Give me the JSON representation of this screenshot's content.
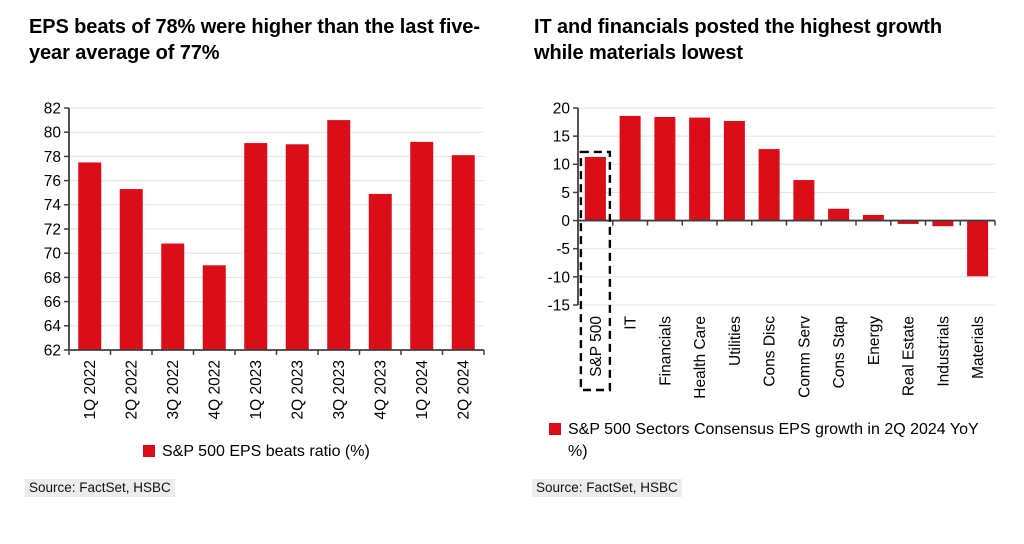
{
  "chart_data": [
    {
      "type": "bar",
      "title": "EPS beats of 78% were higher than the last five-year average of 77%",
      "categories": [
        "1Q 2022",
        "2Q 2022",
        "3Q 2022",
        "4Q 2022",
        "1Q 2023",
        "2Q 2023",
        "3Q 2023",
        "4Q 2023",
        "1Q 2024",
        "2Q 2024"
      ],
      "values": [
        77.5,
        75.3,
        70.8,
        69.0,
        79.1,
        79.0,
        81.0,
        74.9,
        79.2,
        78.1
      ],
      "ylim": [
        62,
        82
      ],
      "ytick_step": 2,
      "baseline": 62,
      "grid": true,
      "legend_position": "bottom",
      "legend": "S&P 500 EPS beats ratio (%)",
      "source": "Source: FactSet, HSBC",
      "bar_color": "#da0d18"
    },
    {
      "type": "bar",
      "title": "IT and financials posted the highest growth while materials lowest",
      "categories": [
        "S&P 500",
        "IT",
        "Financials",
        "Health Care",
        "Utilities",
        "Cons Disc",
        "Comm Serv",
        "Cons Stap",
        "Energy",
        "Real Estate",
        "Industrials",
        "Materials"
      ],
      "values": [
        11.3,
        18.6,
        18.4,
        18.3,
        17.7,
        12.7,
        7.2,
        2.1,
        1.0,
        -0.6,
        -1.0,
        -9.9
      ],
      "ylim": [
        -15,
        20
      ],
      "ytick_step": 5,
      "baseline": 0,
      "grid": true,
      "legend_position": "bottom",
      "legend": "S&P 500 Sectors Consensus EPS growth in 2Q 2024 YoY %)",
      "source": "Source: FactSet, HSBC",
      "bar_color": "#da0d18",
      "highlight": {
        "index": 0,
        "style": "dashed-box",
        "note": "S&P 500 aggregate highlighted"
      }
    }
  ]
}
